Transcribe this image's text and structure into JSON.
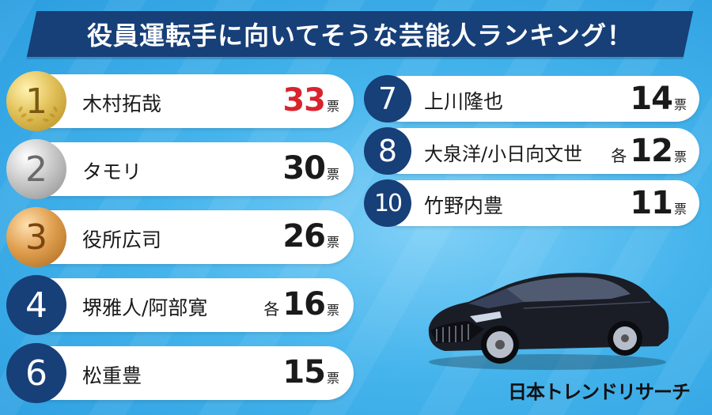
{
  "title": "役員運転手に向いてそうな芸能人ランキング！",
  "colors": {
    "navy": "#173f78",
    "red": "#d9232d",
    "background": "#45b4ec"
  },
  "left": [
    {
      "rank": "1",
      "name": "木村拓哉",
      "votes": "33",
      "prefix": "",
      "unit": "票",
      "style": "gold"
    },
    {
      "rank": "2",
      "name": "タモリ",
      "votes": "30",
      "prefix": "",
      "unit": "票",
      "style": "silver"
    },
    {
      "rank": "3",
      "name": "役所広司",
      "votes": "26",
      "prefix": "",
      "unit": "票",
      "style": "bronze"
    },
    {
      "rank": "4",
      "name": "堺雅人/阿部寛",
      "votes": "16",
      "prefix": "各",
      "unit": "票",
      "style": "navy"
    },
    {
      "rank": "6",
      "name": "松重豊",
      "votes": "15",
      "prefix": "",
      "unit": "票",
      "style": "navy"
    }
  ],
  "right": [
    {
      "rank": "7",
      "name": "上川隆也",
      "votes": "14",
      "prefix": "",
      "unit": "票"
    },
    {
      "rank": "8",
      "name": "大泉洋/小日向文世",
      "votes": "12",
      "prefix": "各",
      "unit": "票"
    },
    {
      "rank": "10",
      "name": "竹野内豊",
      "votes": "11",
      "prefix": "",
      "unit": "票"
    }
  ],
  "brand": "日本トレンドリサーチ",
  "image": {
    "subject": "black sedan car",
    "icon": "car-illustration"
  }
}
